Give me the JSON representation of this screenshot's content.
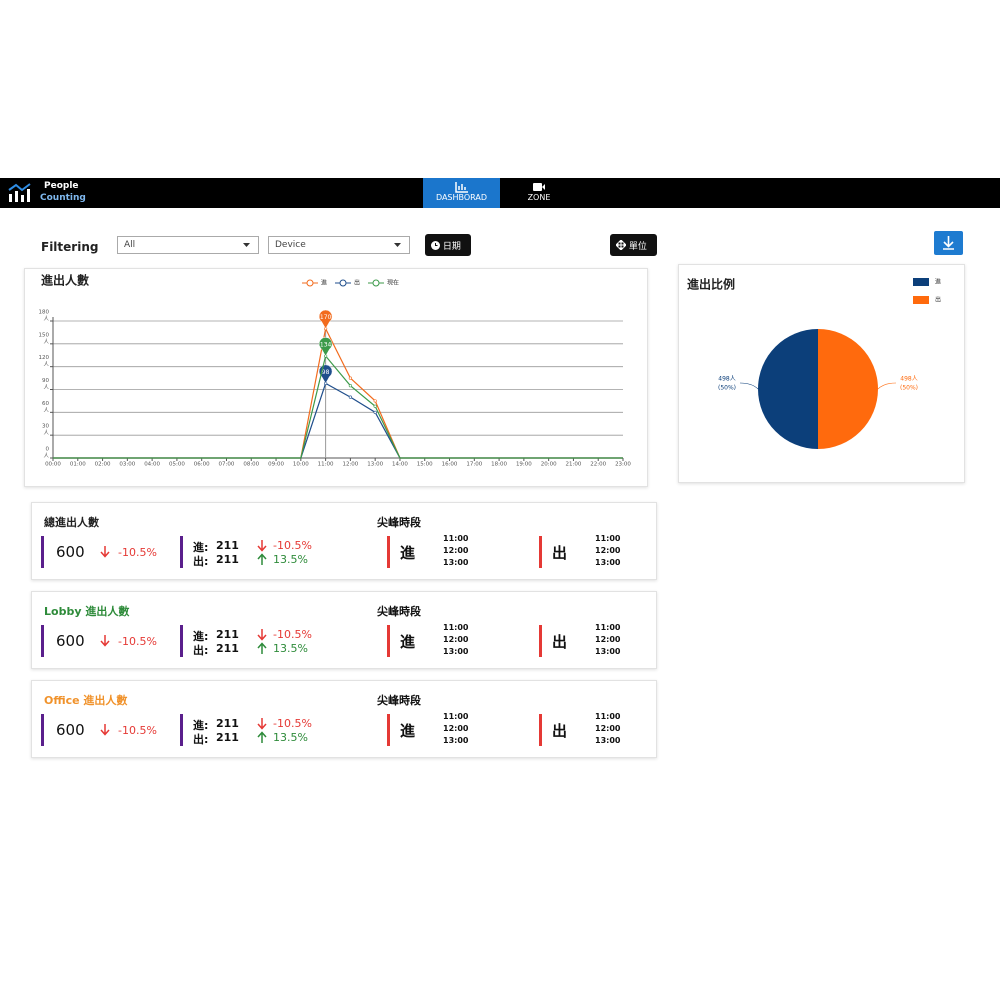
{
  "nav": {
    "brand_1": "People",
    "brand_2": "Counting",
    "tabs": [
      "DASHBORAD",
      "ZONE"
    ]
  },
  "filter": {
    "label": "Filtering",
    "selects": [
      "All",
      "Device"
    ],
    "date_button": "日期",
    "unit_button": "單位"
  },
  "chart_data": [
    {
      "type": "line",
      "title": "進出人數",
      "categories": [
        "00:00",
        "01:00",
        "02:00",
        "03:00",
        "04:00",
        "05:00",
        "06:00",
        "07:00",
        "08:00",
        "09:00",
        "10:00",
        "11:00",
        "12:00",
        "13:00",
        "14:00",
        "15:00",
        "16:00",
        "17:00",
        "18:00",
        "19:00",
        "20:00",
        "21:00",
        "22:00",
        "23:00"
      ],
      "series": [
        {
          "name": "進",
          "color": "#f26b1d",
          "values": [
            0,
            0,
            0,
            0,
            0,
            0,
            0,
            0,
            0,
            0,
            0,
            170,
            105,
            75,
            0,
            0,
            0,
            0,
            0,
            0,
            0,
            0,
            0,
            0
          ]
        },
        {
          "name": "出",
          "color": "#1f4e8c",
          "values": [
            0,
            0,
            0,
            0,
            0,
            0,
            0,
            0,
            0,
            0,
            0,
            98,
            80,
            60,
            0,
            0,
            0,
            0,
            0,
            0,
            0,
            0,
            0,
            0
          ]
        },
        {
          "name": "現在",
          "color": "#3c9a4a",
          "values": [
            0,
            0,
            0,
            0,
            0,
            0,
            0,
            0,
            0,
            0,
            0,
            134,
            95,
            68,
            0,
            0,
            0,
            0,
            0,
            0,
            0,
            0,
            0,
            0
          ]
        }
      ],
      "ylim": [
        0,
        180
      ],
      "yticks": [
        0,
        30,
        60,
        90,
        120,
        150,
        180
      ],
      "y_unit": "人",
      "grid": true,
      "legend": "top"
    },
    {
      "type": "pie",
      "title": "進出比例",
      "categories": [
        "進",
        "出"
      ],
      "values": [
        498,
        498
      ],
      "colors": [
        "#0c3f7a",
        "#ff6a0d"
      ],
      "value_labels": [
        "498人",
        "498人"
      ],
      "percent_labels": [
        "(50%)",
        "(50%)"
      ],
      "legend": "top-right"
    }
  ],
  "cards": [
    {
      "title": "總進出人數",
      "total": 600,
      "total_change": "-10.5%",
      "in_label": "進:",
      "in": 211,
      "in_change": "-10.5%",
      "out_label": "出:",
      "out": 211,
      "out_change": "13.5%",
      "peak_title": "尖峰時段",
      "peak_in_label": "進",
      "peak_in": [
        "11:00",
        "12:00",
        "13:00"
      ],
      "peak_out_label": "出",
      "peak_out": [
        "11:00",
        "12:00",
        "13:00"
      ]
    },
    {
      "title": "Lobby 進出人數",
      "total": 600,
      "total_change": "-10.5%",
      "in_label": "進:",
      "in": 211,
      "in_change": "-10.5%",
      "out_label": "出:",
      "out": 211,
      "out_change": "13.5%",
      "peak_title": "尖峰時段",
      "peak_in_label": "進",
      "peak_in": [
        "11:00",
        "12:00",
        "13:00"
      ],
      "peak_out_label": "出",
      "peak_out": [
        "11:00",
        "12:00",
        "13:00"
      ]
    },
    {
      "title": "Office 進出人數",
      "total": 600,
      "total_change": "-10.5%",
      "in_label": "進:",
      "in": 211,
      "in_change": "-10.5%",
      "out_label": "出:",
      "out": 211,
      "out_change": "13.5%",
      "peak_title": "尖峰時段",
      "peak_in_label": "進",
      "peak_in": [
        "11:00",
        "12:00",
        "13:00"
      ],
      "peak_out_label": "出",
      "peak_out": [
        "11:00",
        "12:00",
        "13:00"
      ]
    }
  ]
}
